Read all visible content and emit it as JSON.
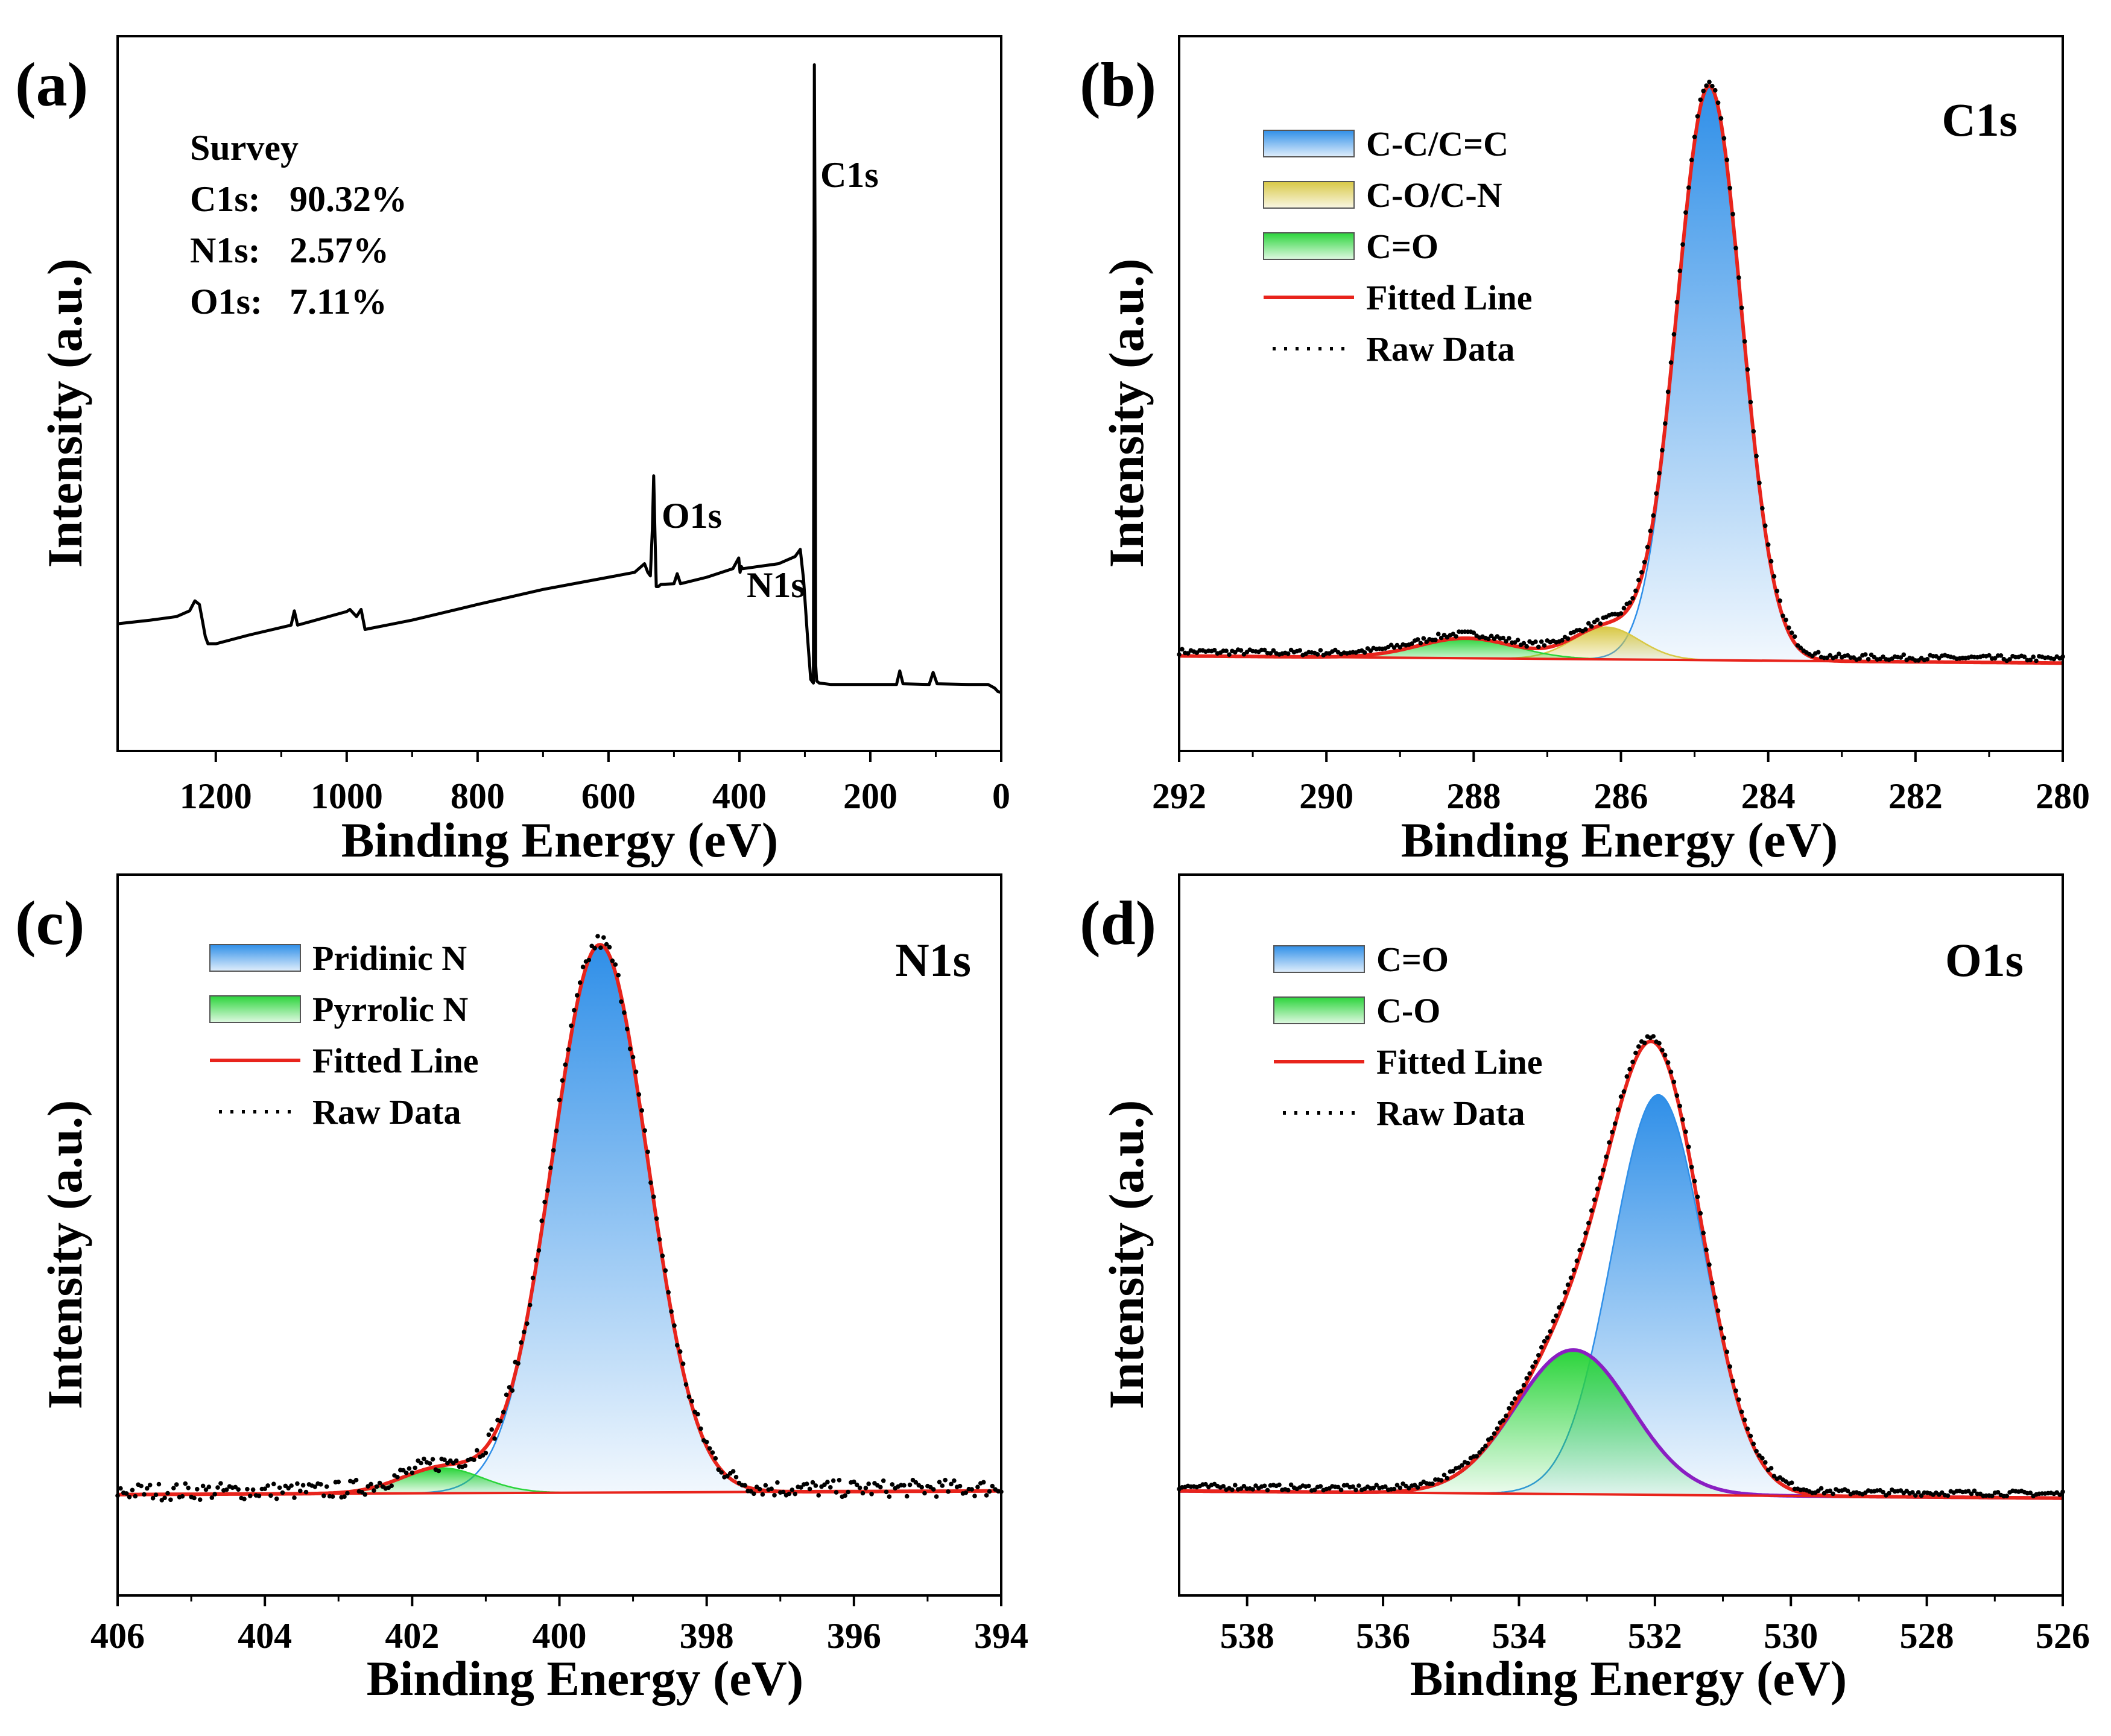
{
  "colors": {
    "fitted": "#e8241c",
    "raw": "#000000",
    "blue": "#2f8fe8",
    "yellow": "#d8c846",
    "green": "#2ad43a",
    "purple": "#8a1fc2"
  },
  "chart_data": [
    {
      "id": "a",
      "type": "line",
      "panel_label": "(a)",
      "xlabel": "Binding Energy (eV)",
      "ylabel": "Intensity (a.u.)",
      "xlim": [
        1350,
        0
      ],
      "ylim": [
        0,
        1
      ],
      "xticks": [
        1200,
        1000,
        800,
        600,
        400,
        200,
        0
      ],
      "xtick_labels": [
        "1200",
        "1000",
        "800",
        "600",
        "400",
        "200",
        "0"
      ],
      "survey_title": "Survey",
      "composition": [
        {
          "label": "C1s:",
          "value": "90.32%"
        },
        {
          "label": "N1s:",
          "value": "2.57%"
        },
        {
          "label": "O1s:",
          "value": "7.11%"
        }
      ],
      "peak_labels": [
        {
          "text": "C1s",
          "x": 285,
          "y": 0.97
        },
        {
          "text": "O1s",
          "x": 531,
          "y": 0.385
        },
        {
          "text": "N1s",
          "x": 399,
          "y": 0.275
        }
      ],
      "series": [
        {
          "name": "Survey",
          "x": [
            1350,
            1300,
            1260,
            1240,
            1232,
            1225,
            1220,
            1216,
            1212,
            1200,
            1150,
            1085,
            1080,
            1075,
            1000,
            995,
            985,
            978,
            972,
            900,
            800,
            700,
            600,
            560,
            545,
            540,
            536,
            533,
            531,
            529,
            527,
            524,
            520,
            500,
            495,
            490,
            450,
            410,
            401,
            399,
            397,
            395,
            340,
            315,
            307,
            302,
            296,
            291,
            287,
            285.5,
            284.5,
            283.5,
            282,
            278,
            260,
            200,
            160,
            155,
            150,
            110,
            104,
            98,
            50,
            20,
            10,
            5,
            0
          ],
          "y": [
            0.178,
            0.183,
            0.188,
            0.196,
            0.21,
            0.205,
            0.18,
            0.16,
            0.15,
            0.15,
            0.162,
            0.176,
            0.196,
            0.176,
            0.195,
            0.198,
            0.188,
            0.198,
            0.17,
            0.183,
            0.205,
            0.226,
            0.243,
            0.25,
            0.262,
            0.25,
            0.245,
            0.31,
            0.385,
            0.305,
            0.23,
            0.23,
            0.233,
            0.234,
            0.248,
            0.234,
            0.243,
            0.255,
            0.27,
            0.25,
            0.258,
            0.255,
            0.262,
            0.272,
            0.282,
            0.24,
            0.16,
            0.1,
            0.095,
            0.96,
            0.72,
            0.12,
            0.098,
            0.095,
            0.093,
            0.093,
            0.093,
            0.112,
            0.094,
            0.093,
            0.11,
            0.094,
            0.093,
            0.093,
            0.088,
            0.083,
            0.082
          ]
        }
      ]
    },
    {
      "id": "b",
      "type": "line",
      "panel_label": "(b)",
      "corner_title": "C1s",
      "xlabel": "Binding Energy (eV)",
      "ylabel": "Intensity (a.u.)",
      "xlim": [
        292,
        280
      ],
      "ylim": [
        0,
        1
      ],
      "xticks": [
        292,
        290,
        288,
        286,
        284,
        282,
        280
      ],
      "xtick_labels": [
        "292",
        "290",
        "288",
        "286",
        "284",
        "282",
        "280"
      ],
      "baseline": {
        "x": [
          292,
          280
        ],
        "y": [
          0.133,
          0.123
        ]
      },
      "components": [
        {
          "name": "C-C/C=C",
          "color_key": "blue",
          "center": 284.8,
          "height": 0.803,
          "sigma": 0.44
        },
        {
          "name": "C-O/C-N",
          "color_key": "yellow",
          "center": 286.2,
          "height": 0.045,
          "sigma": 0.45
        },
        {
          "name": "C=O",
          "color_key": "green",
          "center": 288.1,
          "height": 0.028,
          "sigma": 0.65
        }
      ],
      "legend": [
        "C-C/C=C",
        "C-O/C-N",
        "C=O",
        "Fitted Line",
        "Raw Data"
      ]
    },
    {
      "id": "c",
      "type": "line",
      "panel_label": "(c)",
      "corner_title": "N1s",
      "xlabel": "Binding Energy (eV)",
      "ylabel": "Intensity (a.u.)",
      "xlim": [
        406,
        394
      ],
      "ylim": [
        0,
        1
      ],
      "xticks": [
        406,
        404,
        402,
        400,
        398,
        396,
        394
      ],
      "xtick_labels": [
        "406",
        "404",
        "402",
        "400",
        "398",
        "396",
        "394"
      ],
      "baseline": {
        "x": [
          406,
          394
        ],
        "y": [
          0.14,
          0.145
        ]
      },
      "components": [
        {
          "name": "Pridinic N",
          "color_key": "blue",
          "center": 399.45,
          "height": 0.76,
          "sigma": 0.65
        },
        {
          "name": "Pyrrolic N",
          "color_key": "green",
          "center": 401.6,
          "height": 0.035,
          "sigma": 0.55
        }
      ],
      "legend": [
        "Pridinic N",
        "Pyrrolic N",
        "Fitted Line",
        "Raw Data"
      ]
    },
    {
      "id": "d",
      "type": "line",
      "panel_label": "(d)",
      "corner_title": "O1s",
      "xlabel": "Binding Energy (eV)",
      "ylabel": "Intensity (a.u.)",
      "xlim": [
        539,
        526
      ],
      "ylim": [
        0,
        1
      ],
      "xticks": [
        538,
        536,
        534,
        532,
        530,
        528,
        526
      ],
      "xtick_labels": [
        "538",
        "536",
        "534",
        "532",
        "530",
        "528",
        "526"
      ],
      "baseline": {
        "x": [
          539,
          526
        ],
        "y": [
          0.145,
          0.135
        ]
      },
      "components": [
        {
          "name": "C=O",
          "color_key": "blue",
          "center": 531.95,
          "height": 0.555,
          "sigma": 0.68
        },
        {
          "name": "C-O",
          "color_key": "green",
          "center": 533.2,
          "height": 0.2,
          "sigma": 0.85
        }
      ],
      "legend": [
        "C=O",
        "C-O",
        "Fitted Line",
        "Raw Data"
      ]
    }
  ]
}
